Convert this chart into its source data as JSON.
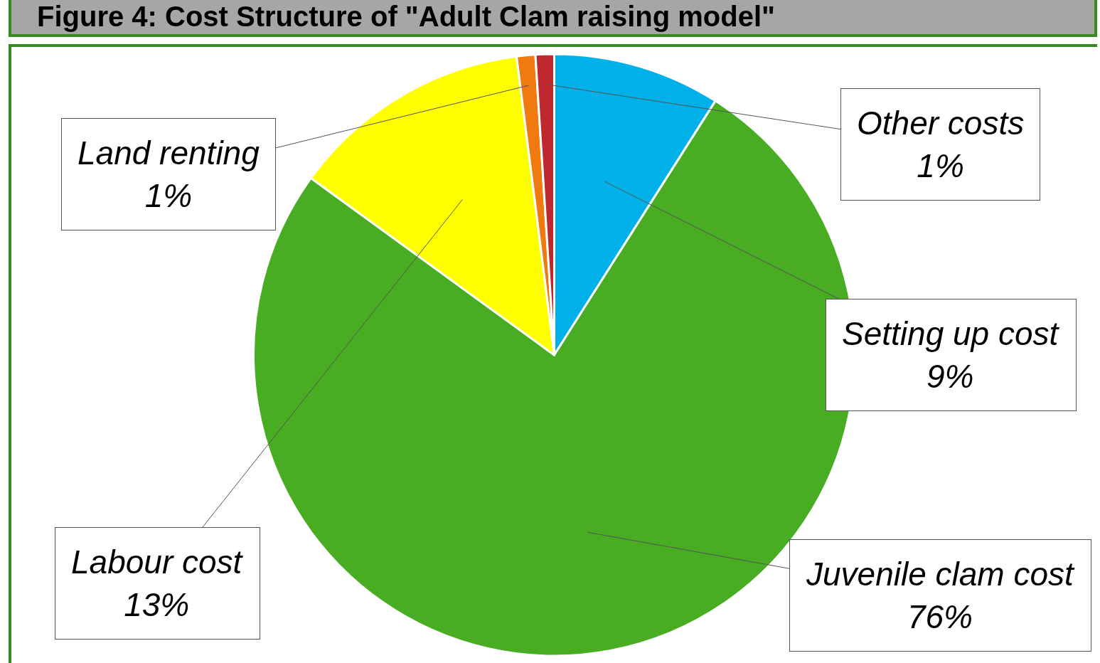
{
  "chart_data": {
    "type": "pie",
    "title": "Figure 4: Cost Structure of \"Adult Clam raising model\"",
    "categories": [
      "Setting up cost",
      "Juvenile clam cost",
      "Labour cost",
      "Land renting",
      "Other costs"
    ],
    "values": [
      9,
      76,
      13,
      1,
      1
    ],
    "value_labels": [
      "9%",
      "76%",
      "13%",
      "1%",
      "1%"
    ],
    "colors": [
      "#00b0e8",
      "#48ad23",
      "#ffff00",
      "#f07a10",
      "#c0282f"
    ]
  }
}
